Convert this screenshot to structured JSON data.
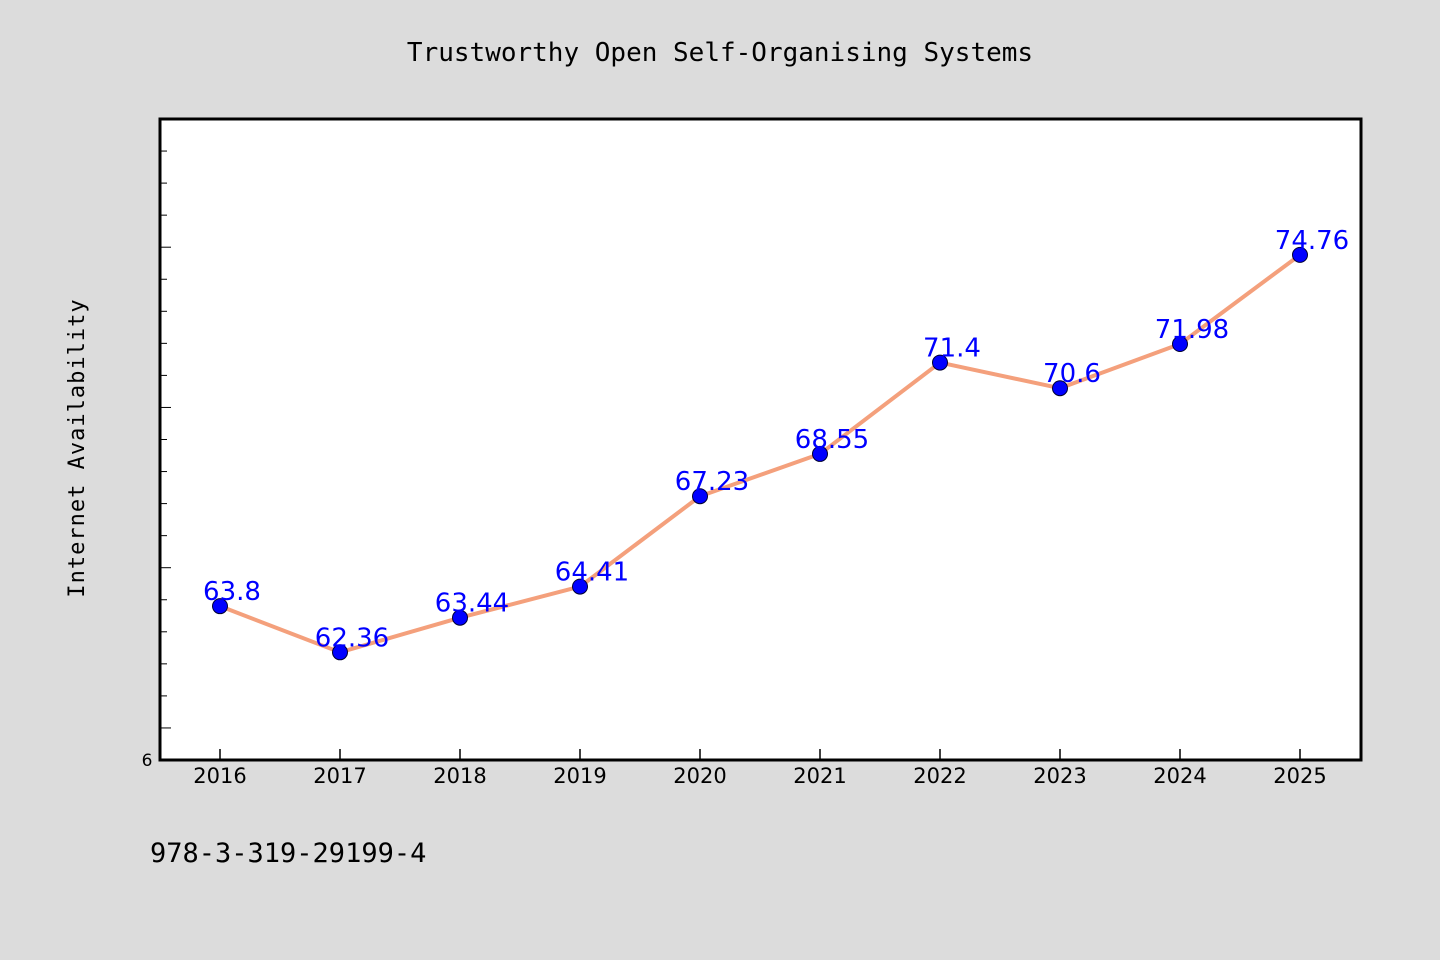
{
  "chart_data": {
    "type": "line",
    "title": "Trustworthy Open Self-Organising Systems",
    "xlabel": "",
    "ylabel": "Internet Availability",
    "categories": [
      "2016",
      "2017",
      "2018",
      "2019",
      "2020",
      "2021",
      "2022",
      "2023",
      "2024",
      "2025"
    ],
    "values": [
      63.8,
      62.36,
      63.44,
      64.41,
      67.23,
      68.55,
      71.4,
      70.6,
      71.98,
      74.76
    ],
    "data_labels": [
      "63.8",
      "62.36",
      "63.44",
      "64.41",
      "67.23",
      "68.55",
      "71.4",
      "70.6",
      "71.98",
      "74.76"
    ],
    "y_tick_labels": [
      "6"
    ],
    "ylim": [
      59,
      79
    ],
    "line_color": "#f4a07c",
    "marker_color": "#0000ff",
    "label_color": "#0000ff",
    "grid": false
  },
  "footnote": "978-3-319-29199-4",
  "colors": {
    "background": "#dcdcdc",
    "plot_background": "#ffffff"
  }
}
